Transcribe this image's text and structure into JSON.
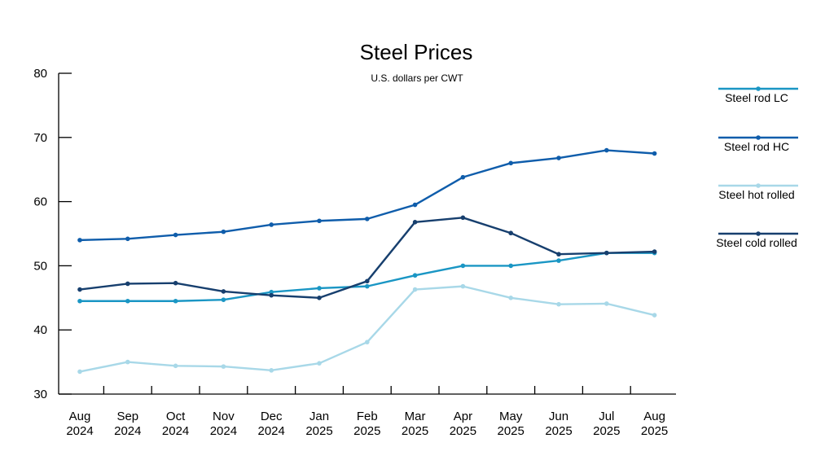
{
  "chart_data": {
    "type": "line",
    "title": "Steel Prices",
    "subtitle": "U.S. dollars per CWT",
    "xlabel": "",
    "ylabel": "",
    "categories": [
      [
        "Aug",
        "2024"
      ],
      [
        "Sep",
        "2024"
      ],
      [
        "Oct",
        "2024"
      ],
      [
        "Nov",
        "2024"
      ],
      [
        "Dec",
        "2024"
      ],
      [
        "Jan",
        "2025"
      ],
      [
        "Feb",
        "2025"
      ],
      [
        "Mar",
        "2025"
      ],
      [
        "Apr",
        "2025"
      ],
      [
        "May",
        "2025"
      ],
      [
        "Jun",
        "2025"
      ],
      [
        "Jul",
        "2025"
      ],
      [
        "Aug",
        "2025"
      ]
    ],
    "ylim": [
      30,
      80
    ],
    "yticks": [
      30,
      40,
      50,
      60,
      70,
      80
    ],
    "grid": false,
    "legend_position": "right",
    "series": [
      {
        "name": "Steel rod LC",
        "color": "#1a96c4",
        "values": [
          44.5,
          44.5,
          44.5,
          44.7,
          45.9,
          46.5,
          46.8,
          48.5,
          50.0,
          50.0,
          50.8,
          52.0,
          52.0
        ]
      },
      {
        "name": "Steel rod HC",
        "color": "#0f5dab",
        "values": [
          54.0,
          54.2,
          54.8,
          55.3,
          56.4,
          57.0,
          57.3,
          59.5,
          63.8,
          66.0,
          66.8,
          68.0,
          67.5
        ]
      },
      {
        "name": "Steel hot rolled",
        "color": "#a8d8e8",
        "values": [
          33.5,
          35.0,
          34.4,
          34.3,
          33.7,
          34.8,
          38.1,
          46.3,
          46.8,
          45.0,
          44.0,
          44.1,
          42.3
        ]
      },
      {
        "name": "Steel cold rolled",
        "color": "#173f6e",
        "values": [
          46.3,
          47.2,
          47.3,
          46.0,
          45.4,
          45.0,
          47.6,
          56.8,
          57.5,
          55.1,
          51.8,
          52.0,
          52.2
        ]
      }
    ]
  }
}
